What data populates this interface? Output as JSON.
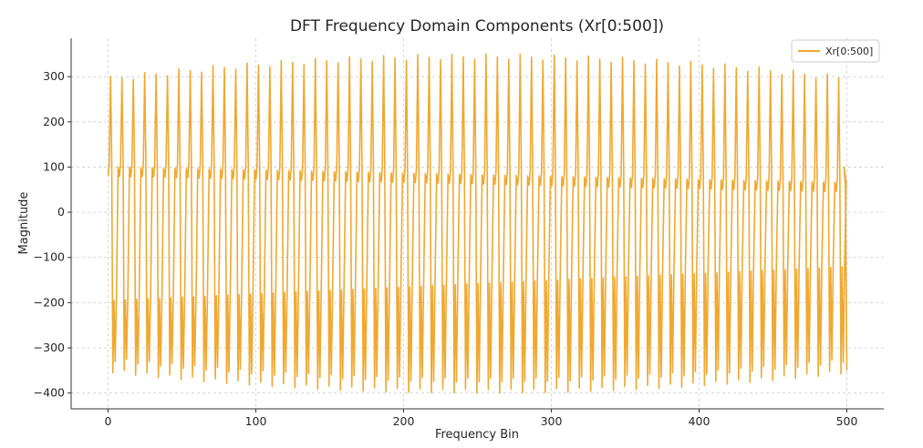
{
  "chart_data": {
    "type": "line",
    "title": "DFT Frequency Domain Components (Xr[0:500])",
    "xlabel": "Frequency Bin",
    "ylabel": "Magnitude",
    "xlim": [
      -25,
      525
    ],
    "ylim": [
      -435,
      385
    ],
    "xticks": [
      0,
      100,
      200,
      300,
      400,
      500
    ],
    "xtick_labels": [
      "0",
      "100",
      "200",
      "300",
      "400",
      "500"
    ],
    "yticks": [
      -400,
      -300,
      -200,
      -100,
      0,
      100,
      200,
      300
    ],
    "ytick_labels": [
      "−400",
      "−300",
      "−200",
      "−100",
      "0",
      "100",
      "200",
      "300"
    ],
    "grid": true,
    "legend": {
      "position": "top-right",
      "entries": [
        "Xr[0:500]"
      ]
    },
    "series": [
      {
        "name": "Xr[0:500]",
        "color": "#f0a830",
        "x_range": [
          0,
          500
        ],
        "approx_period_bins": 7.7,
        "peak_max_range": [
          300,
          350
        ],
        "trough_min_range": [
          -355,
          -400
        ],
        "upper_valley_range": [
          80,
          45
        ],
        "lower_plateau_range": [
          -195,
          -120
        ],
        "end_value": -350
      }
    ]
  }
}
